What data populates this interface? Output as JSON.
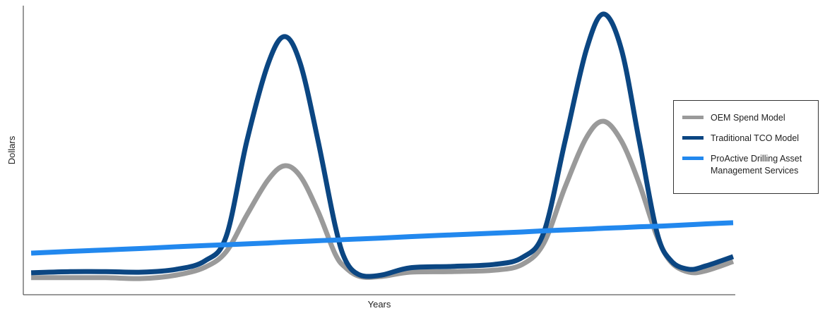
{
  "chart_data": {
    "type": "line",
    "x_label": "Years",
    "y_label": "Dollars",
    "xlim": [
      0,
      100
    ],
    "ylim": [
      0,
      100
    ],
    "x": [
      1.1,
      6.6,
      11.6,
      16.6,
      21.5,
      25.5,
      28.5,
      31.4,
      34.4,
      36.7,
      38.9,
      41.4,
      43.8,
      45.3,
      47.3,
      50.3,
      54.3,
      60.2,
      66.2,
      70.1,
      73.1,
      76.1,
      79.1,
      81.5,
      84.0,
      86.5,
      89.0,
      91.0,
      93.5,
      95.9,
      99.7
    ],
    "series": [
      {
        "name": "OEM Spend Model",
        "color": "#9a9a9a",
        "values": [
          5.9,
          5.9,
          5.9,
          5.6,
          6.8,
          9.5,
          14.9,
          27.6,
          39.8,
          44.6,
          41.0,
          28.8,
          14.1,
          9.3,
          6.3,
          6.3,
          7.8,
          8.0,
          8.5,
          10.5,
          17.8,
          37.3,
          54.4,
          60.0,
          53.2,
          38.5,
          20.2,
          11.2,
          7.8,
          8.3,
          11.5
        ]
      },
      {
        "name": "Traditional TCO Model",
        "color": "#0b4682",
        "values": [
          7.6,
          8.0,
          8.0,
          7.8,
          8.8,
          11.7,
          20.2,
          53.2,
          80.0,
          89.3,
          80.0,
          53.2,
          23.9,
          11.7,
          6.8,
          6.8,
          9.3,
          9.8,
          10.5,
          12.9,
          21.5,
          53.2,
          84.9,
          97.1,
          84.9,
          53.2,
          21.5,
          11.7,
          8.8,
          10.0,
          13.2
        ]
      },
      {
        "name": "ProActive Drilling Asset Management Services",
        "color": "#2288ee",
        "values": [
          14.4,
          15.0,
          15.5,
          16.0,
          16.6,
          17.0,
          17.3,
          17.6,
          17.9,
          18.2,
          18.4,
          18.7,
          18.9,
          19.1,
          19.3,
          19.6,
          20.1,
          20.7,
          21.3,
          21.7,
          22.1,
          22.4,
          22.7,
          23.0,
          23.2,
          23.5,
          23.7,
          23.9,
          24.2,
          24.5,
          24.9
        ]
      }
    ],
    "legend": "right"
  }
}
